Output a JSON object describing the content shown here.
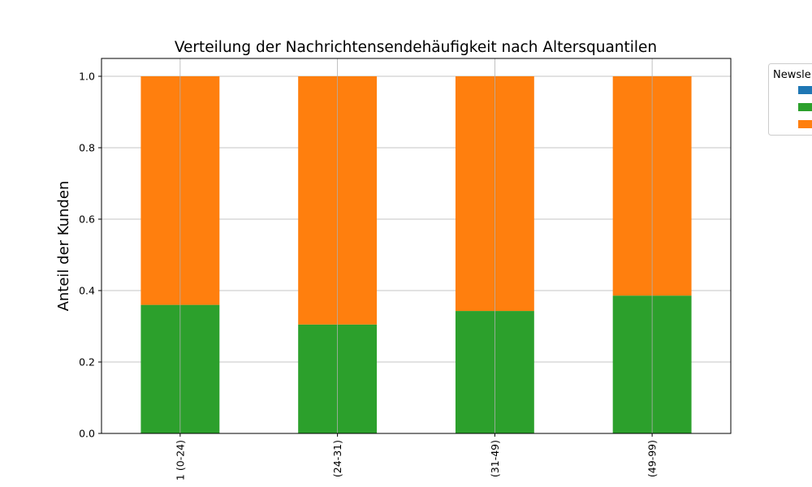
{
  "chart_data": {
    "type": "bar",
    "stacked": true,
    "title": "Verteilung der Nachrichtensendehäufigkeit nach Altersquantilen",
    "xlabel": "",
    "ylabel": "Anteil der Kunden",
    "categories": [
      "1 (0-24)",
      "(24-31)",
      "(31-49)",
      "(49-99)"
    ],
    "series": [
      {
        "values": [
          0.0,
          0.0,
          0.0,
          0.0
        ],
        "color": "#1f77b4"
      },
      {
        "values": [
          0.36,
          0.305,
          0.343,
          0.386
        ],
        "color": "#2ca02c"
      },
      {
        "values": [
          0.64,
          0.695,
          0.657,
          0.614
        ],
        "color": "#ff7f0e"
      }
    ],
    "ylim": [
      0,
      1.05
    ],
    "yticks": [
      0.0,
      0.2,
      0.4,
      0.6,
      0.8,
      1.0
    ],
    "ytick_labels": [
      "0.0",
      "0.2",
      "0.4",
      "0.6",
      "0.8",
      "1.0"
    ],
    "grid": true,
    "legend": {
      "title": "Newsle",
      "placement": "outside-top-right"
    }
  }
}
